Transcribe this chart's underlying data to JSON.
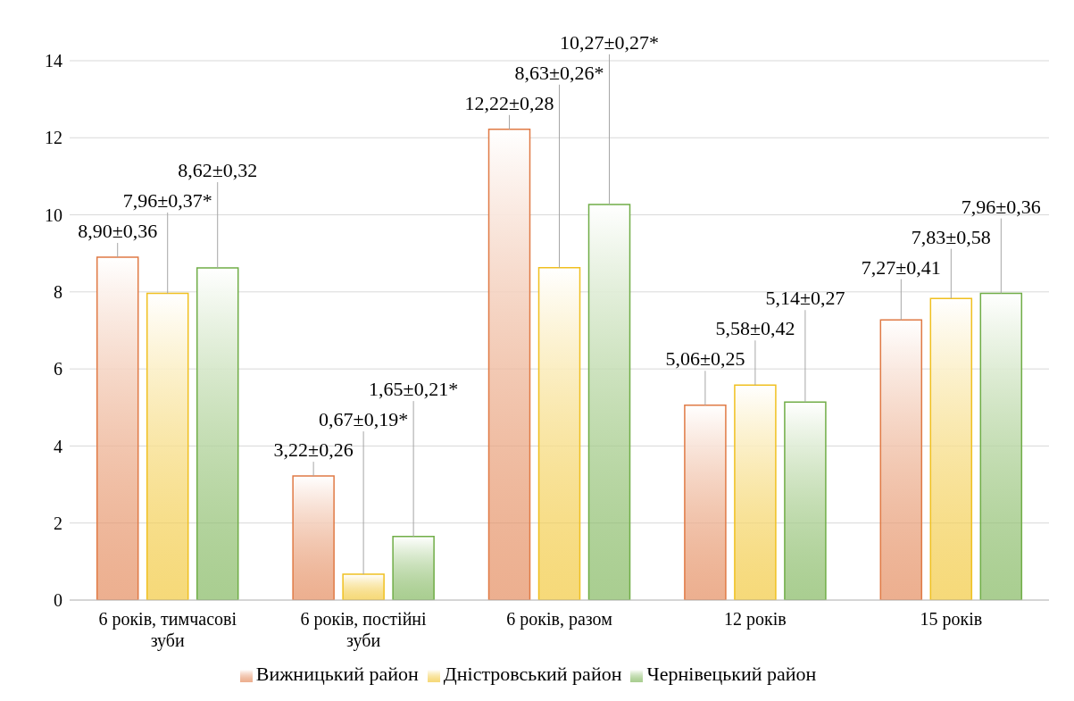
{
  "chart_data": {
    "type": "bar",
    "categories": [
      "6 років, тимчасові зуби",
      "6 років, постійні зуби",
      "6 років, разом",
      "12 років",
      "15 років"
    ],
    "series": [
      {
        "name": "Вижницький район",
        "color": "#e07a45",
        "values": [
          8.9,
          3.22,
          12.22,
          5.06,
          7.27
        ],
        "value_labels": [
          "8,90±0,36",
          "3,22±0,26",
          "12,22±0,28",
          "5,06±0,25",
          "7,27±0,41"
        ]
      },
      {
        "name": "Дністровський район",
        "color": "#f0c020",
        "values": [
          7.96,
          0.67,
          8.63,
          5.58,
          7.83
        ],
        "value_labels": [
          "7,96±0,37*",
          "0,67±0,19*",
          "8,63±0,26*",
          "5,58±0,42",
          "7,83±0,58"
        ]
      },
      {
        "name": "Чернівецький район",
        "color": "#70ad47",
        "values": [
          8.62,
          1.65,
          10.27,
          5.14,
          7.96
        ],
        "value_labels": [
          "8,62±0,32",
          "1,65±0,21*",
          "10,27±0,27*",
          "5,14±0,27",
          "7,96±0,36"
        ]
      }
    ],
    "ylim": [
      0,
      14
    ],
    "yticks": [
      0,
      2,
      4,
      6,
      8,
      10,
      12,
      14
    ],
    "grid": "y",
    "legend": "bottom"
  }
}
